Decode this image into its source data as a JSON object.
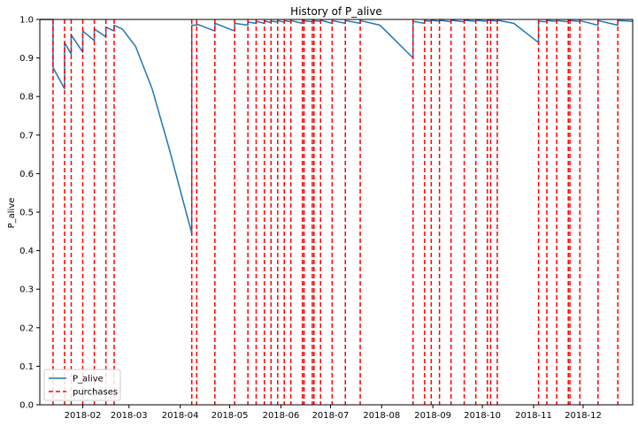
{
  "chart_data": {
    "type": "line",
    "title": "History of P_alive",
    "xlabel": "",
    "ylabel": "P_alive",
    "xlim": [
      "2018-01-06",
      "2018-12-31"
    ],
    "ylim": [
      0,
      1
    ],
    "x_ticks": [
      "2018-02",
      "2018-03",
      "2018-04",
      "2018-05",
      "2018-06",
      "2018-07",
      "2018-08",
      "2018-09",
      "2018-10",
      "2018-11",
      "2018-12"
    ],
    "y_ticks": [
      "0.0",
      "0.1",
      "0.2",
      "0.3",
      "0.4",
      "0.5",
      "0.6",
      "0.7",
      "0.8",
      "0.9",
      "1.0"
    ],
    "legend": {
      "position": "lower-left",
      "entries": [
        {
          "label": "P_alive",
          "color": "#1f77b4",
          "style": "solid"
        },
        {
          "label": "purchases",
          "color": "#ff0000",
          "style": "dashed"
        }
      ]
    },
    "series": [
      {
        "name": "P_alive",
        "color": "#1f77b4",
        "points": [
          [
            "2018-01-06",
            1.0
          ],
          [
            "2018-01-14",
            1.0
          ],
          [
            "2018-01-14",
            0.875
          ],
          [
            "2018-01-21",
            0.82
          ],
          [
            "2018-01-21",
            0.94
          ],
          [
            "2018-01-25",
            0.91
          ],
          [
            "2018-01-25",
            0.96
          ],
          [
            "2018-02-01",
            0.915
          ],
          [
            "2018-02-01",
            0.97
          ],
          [
            "2018-02-08",
            0.945
          ],
          [
            "2018-02-08",
            0.975
          ],
          [
            "2018-02-15",
            0.955
          ],
          [
            "2018-02-15",
            0.98
          ],
          [
            "2018-02-20",
            0.97
          ],
          [
            "2018-02-20",
            0.985
          ],
          [
            "2018-02-25",
            0.975
          ],
          [
            "2018-03-05",
            0.93
          ],
          [
            "2018-03-15",
            0.82
          ],
          [
            "2018-03-25",
            0.67
          ],
          [
            "2018-04-08",
            0.445
          ],
          [
            "2018-04-08",
            0.985
          ],
          [
            "2018-04-11",
            0.985
          ],
          [
            "2018-04-11",
            0.988
          ],
          [
            "2018-04-22",
            0.97
          ],
          [
            "2018-04-22",
            0.99
          ],
          [
            "2018-05-04",
            0.97
          ],
          [
            "2018-05-04",
            0.99
          ],
          [
            "2018-05-12",
            0.985
          ],
          [
            "2018-05-12",
            0.993
          ],
          [
            "2018-05-17",
            0.99
          ],
          [
            "2018-05-17",
            0.995
          ],
          [
            "2018-05-22",
            0.99
          ],
          [
            "2018-05-22",
            0.996
          ],
          [
            "2018-05-26",
            0.992
          ],
          [
            "2018-05-26",
            0.996
          ],
          [
            "2018-05-30",
            0.993
          ],
          [
            "2018-05-30",
            0.997
          ],
          [
            "2018-06-03",
            0.993
          ],
          [
            "2018-06-03",
            0.997
          ],
          [
            "2018-06-07",
            0.994
          ],
          [
            "2018-06-07",
            0.997
          ],
          [
            "2018-06-14",
            0.99
          ],
          [
            "2018-06-14",
            0.997
          ],
          [
            "2018-06-20",
            0.994
          ],
          [
            "2018-06-20",
            0.997
          ],
          [
            "2018-06-25",
            0.995
          ],
          [
            "2018-06-25",
            0.998
          ],
          [
            "2018-07-02",
            0.99
          ],
          [
            "2018-07-02",
            0.997
          ],
          [
            "2018-07-10",
            0.99
          ],
          [
            "2018-07-10",
            0.997
          ],
          [
            "2018-07-19",
            0.99
          ],
          [
            "2018-07-19",
            0.997
          ],
          [
            "2018-07-31",
            0.985
          ],
          [
            "2018-08-20",
            0.9
          ],
          [
            "2018-08-20",
            0.995
          ],
          [
            "2018-08-27",
            0.99
          ],
          [
            "2018-08-27",
            0.997
          ],
          [
            "2018-08-31",
            0.995
          ],
          [
            "2018-08-31",
            0.998
          ],
          [
            "2018-09-05",
            0.995
          ],
          [
            "2018-09-05",
            0.998
          ],
          [
            "2018-09-12",
            0.994
          ],
          [
            "2018-09-12",
            0.998
          ],
          [
            "2018-09-20",
            0.994
          ],
          [
            "2018-09-20",
            0.998
          ],
          [
            "2018-09-27",
            0.995
          ],
          [
            "2018-09-27",
            0.998
          ],
          [
            "2018-10-04",
            0.995
          ],
          [
            "2018-10-04",
            0.998
          ],
          [
            "2018-10-10",
            0.996
          ],
          [
            "2018-10-10",
            0.998
          ],
          [
            "2018-10-20",
            0.99
          ],
          [
            "2018-11-04",
            0.94
          ],
          [
            "2018-11-04",
            0.995
          ],
          [
            "2018-11-09",
            0.994
          ],
          [
            "2018-11-09",
            0.997
          ],
          [
            "2018-11-15",
            0.995
          ],
          [
            "2018-11-15",
            0.997
          ],
          [
            "2018-11-22",
            0.994
          ],
          [
            "2018-11-22",
            0.997
          ],
          [
            "2018-11-29",
            0.995
          ],
          [
            "2018-11-29",
            0.997
          ],
          [
            "2018-12-10",
            0.985
          ],
          [
            "2018-12-10",
            0.997
          ],
          [
            "2018-12-22",
            0.985
          ],
          [
            "2018-12-22",
            0.997
          ],
          [
            "2018-12-31",
            0.995
          ]
        ]
      }
    ],
    "purchases": {
      "name": "purchases",
      "color": "#ff0000",
      "dates": [
        "2018-01-14",
        "2018-01-21",
        "2018-01-25",
        "2018-02-01",
        "2018-02-08",
        "2018-02-15",
        "2018-02-20",
        "2018-04-08",
        "2018-04-11",
        "2018-04-22",
        "2018-05-04",
        "2018-05-12",
        "2018-05-17",
        "2018-05-22",
        "2018-05-26",
        "2018-05-30",
        "2018-06-03",
        "2018-06-07",
        "2018-06-14",
        "2018-06-15",
        "2018-06-20",
        "2018-06-21",
        "2018-06-25",
        "2018-07-02",
        "2018-07-10",
        "2018-07-19",
        "2018-08-20",
        "2018-08-27",
        "2018-08-31",
        "2018-09-05",
        "2018-09-12",
        "2018-09-20",
        "2018-09-27",
        "2018-10-04",
        "2018-10-06",
        "2018-10-10",
        "2018-11-04",
        "2018-11-09",
        "2018-11-15",
        "2018-11-22",
        "2018-11-23",
        "2018-11-29",
        "2018-12-10",
        "2018-12-22"
      ]
    }
  }
}
